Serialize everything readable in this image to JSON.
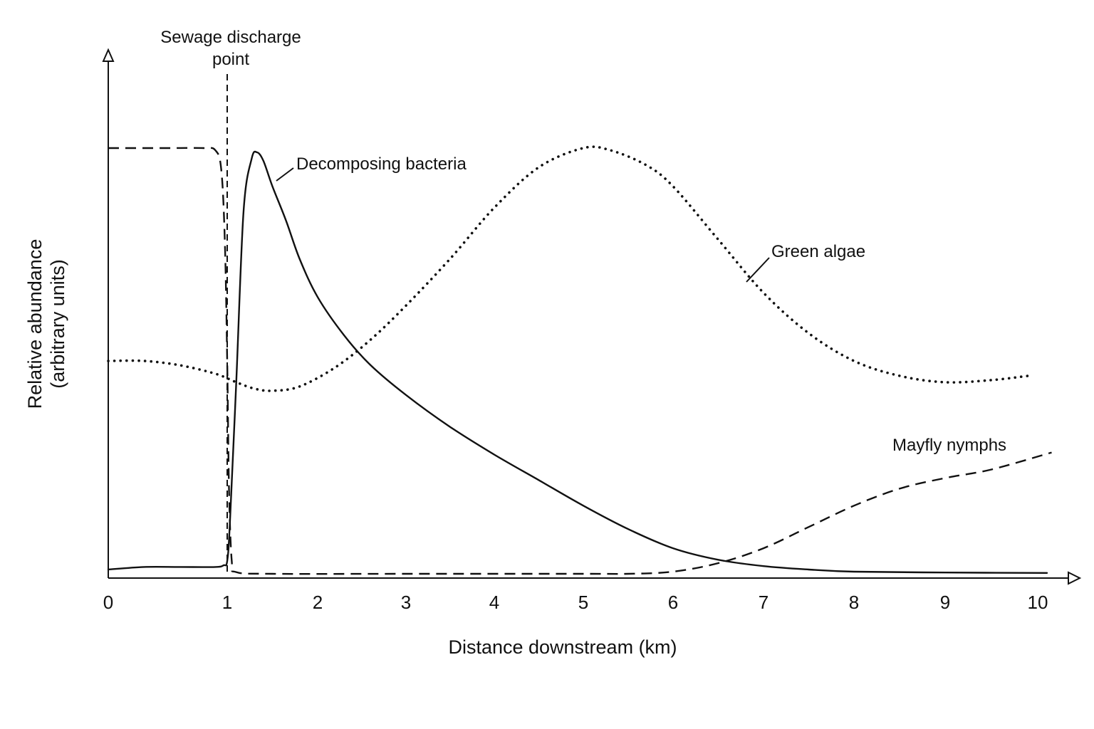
{
  "chart_data": {
    "type": "line",
    "xlabel": "Distance downstream (km)",
    "ylabel_line1": "Relative abundance",
    "ylabel_line2": "(arbitrary units)",
    "xlim": [
      0,
      10
    ],
    "ylim": [
      0,
      100
    ],
    "x_ticks": [
      "0",
      "1",
      "2",
      "3",
      "4",
      "5",
      "6",
      "7",
      "8",
      "9",
      "10"
    ],
    "grid": false,
    "annotations": {
      "discharge_line1": "Sewage discharge",
      "discharge_line2": "point",
      "discharge_x": 1
    },
    "series": [
      {
        "name": "Decomposing bacteria",
        "style": "solid",
        "points": [
          [
            0,
            1
          ],
          [
            0.3,
            1.6
          ],
          [
            0.6,
            1.6
          ],
          [
            0.9,
            1.6
          ],
          [
            0.97,
            2
          ],
          [
            1.0,
            3
          ],
          [
            1.03,
            12
          ],
          [
            1.1,
            45
          ],
          [
            1.18,
            85
          ],
          [
            1.27,
            97.5
          ],
          [
            1.33,
            99
          ],
          [
            1.4,
            97
          ],
          [
            1.5,
            91
          ],
          [
            1.65,
            83
          ],
          [
            1.8,
            74
          ],
          [
            2.0,
            65
          ],
          [
            2.3,
            56
          ],
          [
            2.6,
            49
          ],
          [
            3.0,
            42
          ],
          [
            3.5,
            34.5
          ],
          [
            4.0,
            28
          ],
          [
            4.5,
            22
          ],
          [
            5.0,
            16
          ],
          [
            5.5,
            10.5
          ],
          [
            6.0,
            6
          ],
          [
            6.5,
            3.3
          ],
          [
            7.0,
            1.8
          ],
          [
            7.5,
            1
          ],
          [
            8.0,
            0.5
          ],
          [
            9.0,
            0.3
          ],
          [
            10.1,
            0.2
          ]
        ]
      },
      {
        "name": "Green algae",
        "style": "dotted",
        "points": [
          [
            0,
            50
          ],
          [
            0.3,
            50
          ],
          [
            0.6,
            49
          ],
          [
            0.9,
            47
          ],
          [
            1.1,
            45
          ],
          [
            1.3,
            43.5
          ],
          [
            1.5,
            43
          ],
          [
            1.8,
            44
          ],
          [
            2.2,
            48.5
          ],
          [
            2.6,
            55
          ],
          [
            3.0,
            63
          ],
          [
            3.5,
            74
          ],
          [
            4.0,
            86
          ],
          [
            4.5,
            95.5
          ],
          [
            5.0,
            100
          ],
          [
            5.3,
            99.5
          ],
          [
            5.7,
            96
          ],
          [
            6.0,
            91
          ],
          [
            6.5,
            78.5
          ],
          [
            7.0,
            66
          ],
          [
            7.5,
            56.5
          ],
          [
            8.0,
            50
          ],
          [
            8.5,
            46.5
          ],
          [
            9.0,
            45
          ],
          [
            9.5,
            45.5
          ],
          [
            9.9,
            46.5
          ]
        ]
      },
      {
        "name": "Mayfly nymphs",
        "style": "dashed",
        "points": [
          [
            0,
            100
          ],
          [
            0.5,
            100
          ],
          [
            0.8,
            100
          ],
          [
            0.9,
            99.5
          ],
          [
            0.95,
            95
          ],
          [
            0.98,
            78
          ],
          [
            1.0,
            50
          ],
          [
            1.02,
            20
          ],
          [
            1.05,
            3
          ],
          [
            1.1,
            0.4
          ],
          [
            1.5,
            0
          ],
          [
            3.0,
            0
          ],
          [
            5.0,
            0
          ],
          [
            5.5,
            0
          ],
          [
            6.0,
            0.5
          ],
          [
            6.5,
            2.5
          ],
          [
            7.0,
            6
          ],
          [
            7.5,
            11
          ],
          [
            8.0,
            16
          ],
          [
            8.5,
            20
          ],
          [
            9.0,
            22.5
          ],
          [
            9.5,
            24.5
          ],
          [
            10.15,
            28.5
          ]
        ]
      }
    ]
  }
}
